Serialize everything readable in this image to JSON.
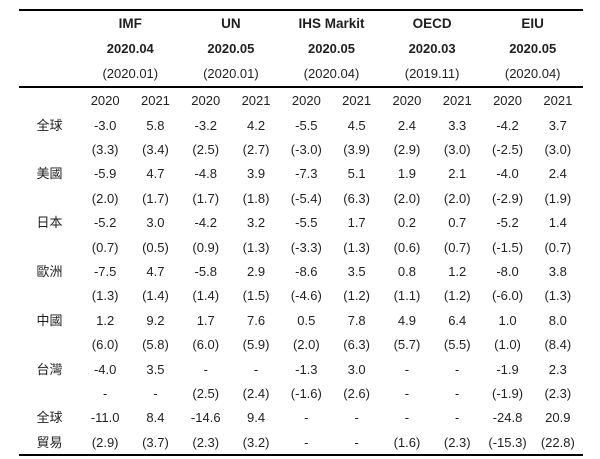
{
  "table": {
    "orgs": [
      {
        "name": "IMF",
        "date": "2020.04",
        "prev_date": "(2020.01)"
      },
      {
        "name": "UN",
        "date": "2020.05",
        "prev_date": "(2020.01)"
      },
      {
        "name": "IHS Markit",
        "date": "2020.05",
        "prev_date": "(2020.04)"
      },
      {
        "name": "OECD",
        "date": "2020.03",
        "prev_date": "(2019.11)"
      },
      {
        "name": "EIU",
        "date": "2020.05",
        "prev_date": "(2020.04)"
      }
    ],
    "year_headers": [
      "2020",
      "2021",
      "2020",
      "2021",
      "2020",
      "2021",
      "2020",
      "2021",
      "2020",
      "2021"
    ],
    "rows": [
      {
        "label": "全球",
        "label2": "",
        "current": [
          "-3.0",
          "5.8",
          "-3.2",
          "4.2",
          "-5.5",
          "4.5",
          "2.4",
          "3.3",
          "-4.2",
          "3.7"
        ],
        "previous": [
          "(3.3)",
          "(3.4)",
          "(2.5)",
          "(2.7)",
          "(-3.0)",
          "(3.9)",
          "(2.9)",
          "(3.0)",
          "(-2.5)",
          "(3.0)"
        ]
      },
      {
        "label": "美國",
        "label2": "",
        "current": [
          "-5.9",
          "4.7",
          "-4.8",
          "3.9",
          "-7.3",
          "5.1",
          "1.9",
          "2.1",
          "-4.0",
          "2.4"
        ],
        "previous": [
          "(2.0)",
          "(1.7)",
          "(1.7)",
          "(1.8)",
          "(-5.4)",
          "(6.3)",
          "(2.0)",
          "(2.0)",
          "(-2.9)",
          "(1.9)"
        ]
      },
      {
        "label": "日本",
        "label2": "",
        "current": [
          "-5.2",
          "3.0",
          "-4.2",
          "3.2",
          "-5.5",
          "1.7",
          "0.2",
          "0.7",
          "-5.2",
          "1.4"
        ],
        "previous": [
          "(0.7)",
          "(0.5)",
          "(0.9)",
          "(1.3)",
          "(-3.3)",
          "(1.3)",
          "(0.6)",
          "(0.7)",
          "(-1.5)",
          "(0.7)"
        ]
      },
      {
        "label": "歐洲",
        "label2": "",
        "current": [
          "-7.5",
          "4.7",
          "-5.8",
          "2.9",
          "-8.6",
          "3.5",
          "0.8",
          "1.2",
          "-8.0",
          "3.8"
        ],
        "previous": [
          "(1.3)",
          "(1.4)",
          "(1.4)",
          "(1.5)",
          "(-4.6)",
          "(1.2)",
          "(1.1)",
          "(1.2)",
          "(-6.0)",
          "(1.3)"
        ]
      },
      {
        "label": "中國",
        "label2": "",
        "current": [
          "1.2",
          "9.2",
          "1.7",
          "7.6",
          "0.5",
          "7.8",
          "4.9",
          "6.4",
          "1.0",
          "8.0"
        ],
        "previous": [
          "(6.0)",
          "(5.8)",
          "(6.0)",
          "(5.9)",
          "(2.0)",
          "(6.3)",
          "(5.7)",
          "(5.5)",
          "(1.0)",
          "(8.4)"
        ]
      },
      {
        "label": "台灣",
        "label2": "",
        "current": [
          "-4.0",
          "3.5",
          "-",
          "-",
          "-1.3",
          "3.0",
          "-",
          "-",
          "-1.9",
          "2.3"
        ],
        "previous": [
          "-",
          "-",
          "(2.5)",
          "(2.4)",
          "(-1.6)",
          "(2.6)",
          "-",
          "-",
          "(-1.9)",
          "(2.3)"
        ]
      },
      {
        "label": "全球",
        "label2": "貿易",
        "current": [
          "-11.0",
          "8.4",
          "-14.6",
          "9.4",
          "-",
          "-",
          "-",
          "-",
          "-24.8",
          "20.9"
        ],
        "previous": [
          "(2.9)",
          "(3.7)",
          "(2.3)",
          "(3.2)",
          "-",
          "-",
          "(1.6)",
          "(2.3)",
          "(-15.3)",
          "(22.8)"
        ]
      }
    ]
  },
  "chart_data": {
    "type": "table",
    "column_groups": [
      {
        "organization": "IMF",
        "forecast_vintage": "2020.04",
        "previous_vintage": "2020.01"
      },
      {
        "organization": "UN",
        "forecast_vintage": "2020.05",
        "previous_vintage": "2020.01"
      },
      {
        "organization": "IHS Markit",
        "forecast_vintage": "2020.05",
        "previous_vintage": "2020.04"
      },
      {
        "organization": "OECD",
        "forecast_vintage": "2020.03",
        "previous_vintage": "2019.11"
      },
      {
        "organization": "EIU",
        "forecast_vintage": "2020.05",
        "previous_vintage": "2020.04"
      }
    ],
    "columns_per_group": [
      "2020",
      "2021"
    ],
    "rows": [
      {
        "region": "全球",
        "latest_forecast": [
          -3.0,
          5.8,
          -3.2,
          4.2,
          -5.5,
          4.5,
          2.4,
          3.3,
          -4.2,
          3.7
        ],
        "previous_forecast": [
          3.3,
          3.4,
          2.5,
          2.7,
          -3.0,
          3.9,
          2.9,
          3.0,
          -2.5,
          3.0
        ]
      },
      {
        "region": "美國",
        "latest_forecast": [
          -5.9,
          4.7,
          -4.8,
          3.9,
          -7.3,
          5.1,
          1.9,
          2.1,
          -4.0,
          2.4
        ],
        "previous_forecast": [
          2.0,
          1.7,
          1.7,
          1.8,
          -5.4,
          6.3,
          2.0,
          2.0,
          -2.9,
          1.9
        ]
      },
      {
        "region": "日本",
        "latest_forecast": [
          -5.2,
          3.0,
          -4.2,
          3.2,
          -5.5,
          1.7,
          0.2,
          0.7,
          -5.2,
          1.4
        ],
        "previous_forecast": [
          0.7,
          0.5,
          0.9,
          1.3,
          -3.3,
          1.3,
          0.6,
          0.7,
          -1.5,
          0.7
        ]
      },
      {
        "region": "歐洲",
        "latest_forecast": [
          -7.5,
          4.7,
          -5.8,
          2.9,
          -8.6,
          3.5,
          0.8,
          1.2,
          -8.0,
          3.8
        ],
        "previous_forecast": [
          1.3,
          1.4,
          1.4,
          1.5,
          -4.6,
          1.2,
          1.1,
          1.2,
          -6.0,
          1.3
        ]
      },
      {
        "region": "中國",
        "latest_forecast": [
          1.2,
          9.2,
          1.7,
          7.6,
          0.5,
          7.8,
          4.9,
          6.4,
          1.0,
          8.0
        ],
        "previous_forecast": [
          6.0,
          5.8,
          6.0,
          5.9,
          2.0,
          6.3,
          5.7,
          5.5,
          1.0,
          8.4
        ]
      },
      {
        "region": "台灣",
        "latest_forecast": [
          -4.0,
          3.5,
          null,
          null,
          -1.3,
          3.0,
          null,
          null,
          -1.9,
          2.3
        ],
        "previous_forecast": [
          null,
          null,
          2.5,
          2.4,
          -1.6,
          2.6,
          null,
          null,
          -1.9,
          2.3
        ]
      },
      {
        "region": "全球貿易",
        "latest_forecast": [
          -11.0,
          8.4,
          -14.6,
          9.4,
          null,
          null,
          null,
          null,
          -24.8,
          20.9
        ],
        "previous_forecast": [
          2.9,
          3.7,
          2.3,
          3.2,
          null,
          null,
          1.6,
          2.3,
          -15.3,
          22.8
        ]
      }
    ]
  }
}
